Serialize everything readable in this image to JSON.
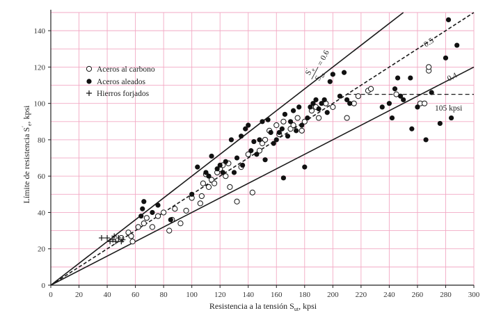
{
  "chart_data": {
    "type": "scatter",
    "xlabel": "Resistencia a la tensión S",
    "xlabel_sub": "ut",
    "xlabel_unit": ", kpsi",
    "ylabel": "Límite de resistencia S",
    "ylabel_sup": "′",
    "ylabel_sub": "e",
    "ylabel_unit": ", kpsi",
    "xlim": [
      0,
      300
    ],
    "ylim": [
      0,
      150
    ],
    "xticks": [
      0,
      20,
      40,
      60,
      80,
      100,
      120,
      140,
      160,
      180,
      200,
      220,
      240,
      260,
      280,
      300
    ],
    "yticks": [
      0,
      20,
      40,
      60,
      80,
      100,
      120,
      140
    ],
    "grid": true,
    "legend_position": "top-left",
    "series": [
      {
        "name": "Aceros al carbono",
        "marker": "open-circle",
        "points": [
          [
            50,
            26
          ],
          [
            55,
            29
          ],
          [
            57,
            27
          ],
          [
            58,
            24
          ],
          [
            62,
            32
          ],
          [
            66,
            34
          ],
          [
            68,
            37
          ],
          [
            72,
            32
          ],
          [
            76,
            38
          ],
          [
            80,
            40
          ],
          [
            84,
            30
          ],
          [
            86,
            36
          ],
          [
            88,
            42
          ],
          [
            92,
            34
          ],
          [
            96,
            41
          ],
          [
            100,
            48
          ],
          [
            106,
            45
          ],
          [
            107,
            49
          ],
          [
            108,
            56
          ],
          [
            110,
            61
          ],
          [
            112,
            54
          ],
          [
            114,
            58
          ],
          [
            116,
            56
          ],
          [
            118,
            62
          ],
          [
            120,
            64
          ],
          [
            122,
            66
          ],
          [
            124,
            60
          ],
          [
            126,
            67
          ],
          [
            127,
            54
          ],
          [
            132,
            46
          ],
          [
            135,
            65
          ],
          [
            140,
            72
          ],
          [
            143,
            51
          ],
          [
            148,
            74
          ],
          [
            150,
            78
          ],
          [
            152,
            80
          ],
          [
            155,
            85
          ],
          [
            160,
            88
          ],
          [
            162,
            83
          ],
          [
            165,
            90
          ],
          [
            170,
            86
          ],
          [
            172,
            88
          ],
          [
            175,
            92
          ],
          [
            178,
            85
          ],
          [
            180,
            90
          ],
          [
            185,
            96
          ],
          [
            188,
            98
          ],
          [
            190,
            92
          ],
          [
            195,
            100
          ],
          [
            200,
            98
          ],
          [
            210,
            92
          ],
          [
            215,
            100
          ],
          [
            218,
            104
          ],
          [
            225,
            107
          ],
          [
            227,
            108
          ],
          [
            245,
            105
          ],
          [
            262,
            100
          ],
          [
            265,
            100
          ],
          [
            268,
            118
          ],
          [
            268,
            120
          ]
        ]
      },
      {
        "name": "Aceros aleados",
        "marker": "filled-circle",
        "points": [
          [
            64,
            38
          ],
          [
            65,
            42
          ],
          [
            66,
            46
          ],
          [
            72,
            40
          ],
          [
            76,
            44
          ],
          [
            85,
            36
          ],
          [
            100,
            50
          ],
          [
            104,
            65
          ],
          [
            110,
            62
          ],
          [
            112,
            60
          ],
          [
            114,
            71
          ],
          [
            118,
            64
          ],
          [
            120,
            66
          ],
          [
            122,
            62
          ],
          [
            124,
            68
          ],
          [
            128,
            80
          ],
          [
            130,
            62
          ],
          [
            132,
            70
          ],
          [
            135,
            82
          ],
          [
            136,
            66
          ],
          [
            138,
            86
          ],
          [
            140,
            88
          ],
          [
            142,
            74
          ],
          [
            144,
            79
          ],
          [
            146,
            72
          ],
          [
            148,
            80
          ],
          [
            150,
            90
          ],
          [
            152,
            69
          ],
          [
            154,
            91
          ],
          [
            156,
            84
          ],
          [
            158,
            78
          ],
          [
            160,
            80
          ],
          [
            162,
            84
          ],
          [
            164,
            86
          ],
          [
            165,
            59
          ],
          [
            166,
            94
          ],
          [
            168,
            82
          ],
          [
            170,
            90
          ],
          [
            172,
            96
          ],
          [
            174,
            85
          ],
          [
            176,
            98
          ],
          [
            178,
            88
          ],
          [
            180,
            65
          ],
          [
            182,
            92
          ],
          [
            184,
            98
          ],
          [
            186,
            100
          ],
          [
            188,
            102
          ],
          [
            190,
            97
          ],
          [
            192,
            100
          ],
          [
            194,
            102
          ],
          [
            196,
            95
          ],
          [
            198,
            112
          ],
          [
            200,
            116
          ],
          [
            205,
            104
          ],
          [
            208,
            117
          ],
          [
            210,
            102
          ],
          [
            212,
            100
          ],
          [
            235,
            98
          ],
          [
            240,
            100
          ],
          [
            242,
            92
          ],
          [
            244,
            108
          ],
          [
            246,
            114
          ],
          [
            248,
            104
          ],
          [
            250,
            102
          ],
          [
            255,
            114
          ],
          [
            256,
            86
          ],
          [
            260,
            98
          ],
          [
            266,
            80
          ],
          [
            270,
            106
          ],
          [
            276,
            89
          ],
          [
            280,
            125
          ],
          [
            282,
            146
          ],
          [
            284,
            92
          ],
          [
            288,
            132
          ]
        ]
      },
      {
        "name": "Hierros forjados",
        "marker": "plus",
        "points": [
          [
            36,
            26
          ],
          [
            40,
            26
          ],
          [
            42,
            24
          ],
          [
            44,
            25
          ],
          [
            45,
            27
          ],
          [
            46,
            24
          ],
          [
            48,
            26
          ],
          [
            50,
            24
          ],
          [
            51,
            25
          ]
        ]
      }
    ],
    "reference_lines": [
      {
        "label": "0.6",
        "slope": 0.6
      },
      {
        "label": "0.5",
        "slope": 0.5,
        "dashed": true
      },
      {
        "label": "0.4",
        "slope": 0.4
      }
    ],
    "horizontal_reference": {
      "value": 105,
      "from_x": 210,
      "label": "105 kpsi",
      "dashed": true
    },
    "ratio_annotation": {
      "numerator": "S",
      "numerator_sup": "′",
      "numerator_sub": "e",
      "denominator": "S",
      "denominator_sub": "ut",
      "equals": "= 0.6"
    }
  }
}
